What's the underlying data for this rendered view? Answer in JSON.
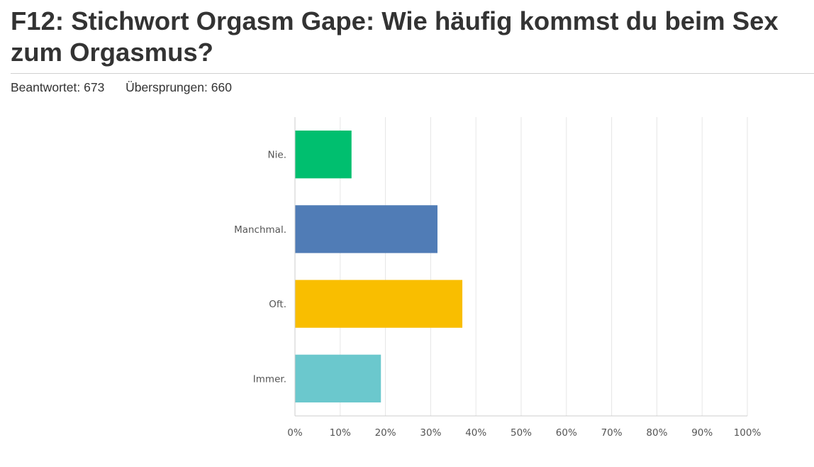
{
  "header": {
    "title": "F12: Stichwort Orgasm Gape: Wie häufig kommst du beim Sex zum Orgasmus?",
    "answered_label": "Beantwortet:",
    "answered_count": "673",
    "skipped_label": "Übersprungen:",
    "skipped_count": "660"
  },
  "chart_data": {
    "type": "bar",
    "orientation": "horizontal",
    "categories": [
      "Nie.",
      "Manchmal.",
      "Oft.",
      "Immer."
    ],
    "values": [
      12.5,
      31.5,
      37,
      19
    ],
    "value_unit": "%",
    "colors": [
      "#00bf6f",
      "#507cb6",
      "#f9be00",
      "#6bc8cd"
    ],
    "xlim": [
      0,
      100
    ],
    "xticks": [
      "0%",
      "10%",
      "20%",
      "30%",
      "40%",
      "50%",
      "60%",
      "70%",
      "80%",
      "90%",
      "100%"
    ],
    "grid": true,
    "title": "",
    "xlabel": "",
    "ylabel": ""
  }
}
